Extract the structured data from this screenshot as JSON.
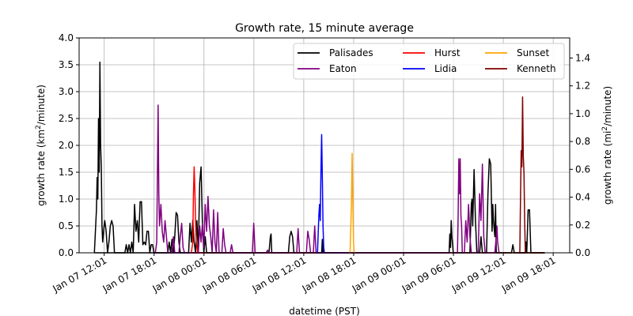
{
  "chart_data": {
    "type": "line",
    "title": "Growth rate, 15 minute average",
    "xlabel": "datetime (PST)",
    "ylabel_left": "growth rate (km2/minute)",
    "ylabel_right": "growth rate (mi2/minute)",
    "ylim_left": [
      0,
      4.0
    ],
    "ylim_right_from_left_factor": 0.386102,
    "xlim": [
      "2025-01-07 09:00",
      "2025-01-09 20:00"
    ],
    "x_ticks": [
      "2025-01-07 12:01",
      "2025-01-07 18:01",
      "2025-01-08 00:01",
      "2025-01-08 06:01",
      "2025-01-08 12:01",
      "2025-01-08 18:01",
      "2025-01-09 00:01",
      "2025-01-09 06:01",
      "2025-01-09 12:01",
      "2025-01-09 18:01"
    ],
    "x_tick_labels": [
      "Jan 07 12:01",
      "Jan 07 18:01",
      "Jan 08 00:01",
      "Jan 08 06:01",
      "Jan 08 12:01",
      "Jan 08 18:01",
      "Jan 09 00:01",
      "Jan 09 06:01",
      "Jan 09 12:01",
      "Jan 09 18:01"
    ],
    "y_ticks_left": [
      "0.0",
      "0.5",
      "1.0",
      "1.5",
      "2.0",
      "2.5",
      "3.0",
      "3.5",
      "4.0"
    ],
    "y_ticks_right": [
      "0.0",
      "0.2",
      "0.4",
      "0.6",
      "0.8",
      "1.0",
      "1.2",
      "1.4"
    ],
    "grid": true,
    "legend_position": "top-right",
    "series": [
      {
        "name": "Palisades",
        "color": "#000000",
        "points": [
          [
            "2025-01-07 10:50",
            0.0
          ],
          [
            "2025-01-07 11:05",
            0.8
          ],
          [
            "2025-01-07 11:10",
            1.4
          ],
          [
            "2025-01-07 11:15",
            1.0
          ],
          [
            "2025-01-07 11:20",
            2.5
          ],
          [
            "2025-01-07 11:25",
            1.5
          ],
          [
            "2025-01-07 11:30",
            3.55
          ],
          [
            "2025-01-07 11:35",
            2.0
          ],
          [
            "2025-01-07 11:40",
            1.6
          ],
          [
            "2025-01-07 11:45",
            0.5
          ],
          [
            "2025-01-07 11:50",
            0.2
          ],
          [
            "2025-01-07 12:00",
            0.5
          ],
          [
            "2025-01-07 12:05",
            0.6
          ],
          [
            "2025-01-07 12:15",
            0.4
          ],
          [
            "2025-01-07 12:25",
            0.0
          ],
          [
            "2025-01-07 12:35",
            0.2
          ],
          [
            "2025-01-07 12:45",
            0.5
          ],
          [
            "2025-01-07 12:55",
            0.6
          ],
          [
            "2025-01-07 13:05",
            0.5
          ],
          [
            "2025-01-07 13:15",
            0.0
          ],
          [
            "2025-01-07 14:30",
            0.0
          ],
          [
            "2025-01-07 14:40",
            0.15
          ],
          [
            "2025-01-07 14:50",
            0.0
          ],
          [
            "2025-01-07 15:00",
            0.15
          ],
          [
            "2025-01-07 15:10",
            0.0
          ],
          [
            "2025-01-07 15:20",
            0.2
          ],
          [
            "2025-01-07 15:30",
            0.0
          ],
          [
            "2025-01-07 15:40",
            0.9
          ],
          [
            "2025-01-07 15:50",
            0.4
          ],
          [
            "2025-01-07 16:00",
            0.6
          ],
          [
            "2025-01-07 16:10",
            0.2
          ],
          [
            "2025-01-07 16:15",
            0.6
          ],
          [
            "2025-01-07 16:20",
            0.95
          ],
          [
            "2025-01-07 16:30",
            0.95
          ],
          [
            "2025-01-07 16:40",
            0.15
          ],
          [
            "2025-01-07 16:50",
            0.2
          ],
          [
            "2025-01-07 17:00",
            0.15
          ],
          [
            "2025-01-07 17:10",
            0.4
          ],
          [
            "2025-01-07 17:20",
            0.4
          ],
          [
            "2025-01-07 17:30",
            0.0
          ],
          [
            "2025-01-07 17:40",
            0.15
          ],
          [
            "2025-01-07 17:50",
            0.15
          ],
          [
            "2025-01-07 18:00",
            0.0
          ],
          [
            "2025-01-07 19:40",
            0.0
          ],
          [
            "2025-01-07 19:50",
            0.2
          ],
          [
            "2025-01-07 20:00",
            0.0
          ],
          [
            "2025-01-07 20:10",
            0.25
          ],
          [
            "2025-01-07 20:20",
            0.0
          ],
          [
            "2025-01-07 20:30",
            0.3
          ],
          [
            "2025-01-07 20:40",
            0.75
          ],
          [
            "2025-01-07 20:50",
            0.7
          ],
          [
            "2025-01-07 21:00",
            0.2
          ],
          [
            "2025-01-07 21:10",
            0.0
          ],
          [
            "2025-01-07 22:10",
            0.0
          ],
          [
            "2025-01-07 22:20",
            0.55
          ],
          [
            "2025-01-07 22:30",
            0.2
          ],
          [
            "2025-01-07 22:40",
            0.6
          ],
          [
            "2025-01-07 22:50",
            0.2
          ],
          [
            "2025-01-07 23:00",
            0.0
          ],
          [
            "2025-01-07 23:10",
            0.6
          ],
          [
            "2025-01-07 23:20",
            0.0
          ],
          [
            "2025-01-07 23:30",
            1.3
          ],
          [
            "2025-01-07 23:40",
            1.6
          ],
          [
            "2025-01-07 23:50",
            0.5
          ],
          [
            "2025-01-08 00:00",
            0.0
          ],
          [
            "2025-01-08 00:10",
            0.3
          ],
          [
            "2025-01-08 00:20",
            0.0
          ],
          [
            "2025-01-08 07:50",
            0.0
          ],
          [
            "2025-01-08 08:00",
            0.3
          ],
          [
            "2025-01-08 08:05",
            0.35
          ],
          [
            "2025-01-08 08:10",
            0.0
          ],
          [
            "2025-01-08 10:10",
            0.0
          ],
          [
            "2025-01-08 10:20",
            0.3
          ],
          [
            "2025-01-08 10:30",
            0.4
          ],
          [
            "2025-01-08 10:40",
            0.3
          ],
          [
            "2025-01-08 10:50",
            0.0
          ],
          [
            "2025-01-08 14:10",
            0.0
          ],
          [
            "2025-01-08 14:15",
            0.25
          ],
          [
            "2025-01-08 14:20",
            0.0
          ],
          [
            "2025-01-09 05:30",
            0.0
          ],
          [
            "2025-01-09 05:35",
            0.35
          ],
          [
            "2025-01-09 05:40",
            0.1
          ],
          [
            "2025-01-09 05:45",
            0.6
          ],
          [
            "2025-01-09 05:50",
            0.3
          ],
          [
            "2025-01-09 06:00",
            0.0
          ],
          [
            "2025-01-09 08:00",
            0.0
          ],
          [
            "2025-01-09 08:10",
            0.9
          ],
          [
            "2025-01-09 08:15",
            1.0
          ],
          [
            "2025-01-09 08:20",
            0.5
          ],
          [
            "2025-01-09 08:30",
            1.55
          ],
          [
            "2025-01-09 08:40",
            0.6
          ],
          [
            "2025-01-09 08:50",
            0.0
          ],
          [
            "2025-01-09 09:10",
            0.0
          ],
          [
            "2025-01-09 09:20",
            0.3
          ],
          [
            "2025-01-09 09:30",
            0.0
          ],
          [
            "2025-01-09 10:00",
            0.0
          ],
          [
            "2025-01-09 10:10",
            1.1
          ],
          [
            "2025-01-09 10:20",
            1.75
          ],
          [
            "2025-01-09 10:30",
            1.65
          ],
          [
            "2025-01-09 10:40",
            0.4
          ],
          [
            "2025-01-09 10:45",
            0.9
          ],
          [
            "2025-01-09 10:50",
            0.6
          ],
          [
            "2025-01-09 11:00",
            0.3
          ],
          [
            "2025-01-09 11:05",
            0.9
          ],
          [
            "2025-01-09 11:10",
            0.0
          ],
          [
            "2025-01-09 13:00",
            0.0
          ],
          [
            "2025-01-09 13:10",
            0.15
          ],
          [
            "2025-01-09 13:20",
            0.0
          ],
          [
            "2025-01-09 14:40",
            0.0
          ],
          [
            "2025-01-09 14:45",
            0.2
          ],
          [
            "2025-01-09 14:50",
            0.0
          ],
          [
            "2025-01-09 15:00",
            0.8
          ],
          [
            "2025-01-09 15:10",
            0.8
          ],
          [
            "2025-01-09 15:20",
            0.0
          ],
          [
            "2025-01-09 17:00",
            0.0
          ]
        ]
      },
      {
        "name": "Eaton",
        "color": "#800080",
        "points": [
          [
            "2025-01-07 18:10",
            0.0
          ],
          [
            "2025-01-07 18:20",
            0.2
          ],
          [
            "2025-01-07 18:30",
            2.75
          ],
          [
            "2025-01-07 18:35",
            1.1
          ],
          [
            "2025-01-07 18:40",
            0.5
          ],
          [
            "2025-01-07 18:50",
            0.9
          ],
          [
            "2025-01-07 19:00",
            0.4
          ],
          [
            "2025-01-07 19:10",
            0.2
          ],
          [
            "2025-01-07 19:20",
            0.6
          ],
          [
            "2025-01-07 19:30",
            0.3
          ],
          [
            "2025-01-07 19:40",
            0.0
          ],
          [
            "2025-01-07 20:10",
            0.0
          ],
          [
            "2025-01-07 20:20",
            0.3
          ],
          [
            "2025-01-07 20:30",
            0.0
          ],
          [
            "2025-01-07 21:00",
            0.0
          ],
          [
            "2025-01-07 21:10",
            0.3
          ],
          [
            "2025-01-07 21:20",
            0.55
          ],
          [
            "2025-01-07 21:30",
            0.1
          ],
          [
            "2025-01-07 21:40",
            0.0
          ],
          [
            "2025-01-07 23:20",
            0.0
          ],
          [
            "2025-01-07 23:30",
            0.5
          ],
          [
            "2025-01-07 23:40",
            0.2
          ],
          [
            "2025-01-07 23:50",
            0.55
          ],
          [
            "2025-01-08 00:00",
            0.1
          ],
          [
            "2025-01-08 00:10",
            0.9
          ],
          [
            "2025-01-08 00:20",
            0.4
          ],
          [
            "2025-01-08 00:30",
            1.05
          ],
          [
            "2025-01-08 00:40",
            0.5
          ],
          [
            "2025-01-08 00:50",
            0.3
          ],
          [
            "2025-01-08 01:00",
            0.0
          ],
          [
            "2025-01-08 01:10",
            0.8
          ],
          [
            "2025-01-08 01:20",
            0.2
          ],
          [
            "2025-01-08 01:30",
            0.0
          ],
          [
            "2025-01-08 01:40",
            0.75
          ],
          [
            "2025-01-08 01:50",
            0.0
          ],
          [
            "2025-01-08 02:10",
            0.0
          ],
          [
            "2025-01-08 02:20",
            0.45
          ],
          [
            "2025-01-08 02:30",
            0.15
          ],
          [
            "2025-01-08 02:40",
            0.0
          ],
          [
            "2025-01-08 03:10",
            0.0
          ],
          [
            "2025-01-08 03:20",
            0.15
          ],
          [
            "2025-01-08 03:30",
            0.0
          ],
          [
            "2025-01-08 05:50",
            0.0
          ],
          [
            "2025-01-08 06:00",
            0.55
          ],
          [
            "2025-01-08 06:10",
            0.0
          ],
          [
            "2025-01-08 07:30",
            0.0
          ],
          [
            "2025-01-08 07:40",
            0.05
          ],
          [
            "2025-01-08 07:50",
            0.0
          ],
          [
            "2025-01-08 11:10",
            0.0
          ],
          [
            "2025-01-08 11:20",
            0.45
          ],
          [
            "2025-01-08 11:30",
            0.0
          ],
          [
            "2025-01-08 12:20",
            0.0
          ],
          [
            "2025-01-08 12:30",
            0.4
          ],
          [
            "2025-01-08 12:40",
            0.25
          ],
          [
            "2025-01-08 12:50",
            0.0
          ],
          [
            "2025-01-08 13:10",
            0.0
          ],
          [
            "2025-01-08 13:20",
            0.5
          ],
          [
            "2025-01-08 13:30",
            0.0
          ],
          [
            "2025-01-09 06:30",
            0.0
          ],
          [
            "2025-01-09 06:35",
            0.7
          ],
          [
            "2025-01-09 06:40",
            1.75
          ],
          [
            "2025-01-09 06:45",
            1.1
          ],
          [
            "2025-01-09 06:50",
            1.75
          ],
          [
            "2025-01-09 06:55",
            0.7
          ],
          [
            "2025-01-09 07:00",
            0.5
          ],
          [
            "2025-01-09 07:05",
            0.0
          ],
          [
            "2025-01-09 07:20",
            0.0
          ],
          [
            "2025-01-09 07:30",
            0.6
          ],
          [
            "2025-01-09 07:40",
            0.2
          ],
          [
            "2025-01-09 07:50",
            0.9
          ],
          [
            "2025-01-09 08:00",
            0.3
          ],
          [
            "2025-01-09 08:10",
            0.0
          ],
          [
            "2025-01-09 09:00",
            0.0
          ],
          [
            "2025-01-09 09:10",
            1.1
          ],
          [
            "2025-01-09 09:20",
            0.6
          ],
          [
            "2025-01-09 09:30",
            1.65
          ],
          [
            "2025-01-09 09:40",
            0.3
          ],
          [
            "2025-01-09 09:50",
            0.0
          ],
          [
            "2025-01-09 11:00",
            0.0
          ],
          [
            "2025-01-09 11:10",
            0.3
          ],
          [
            "2025-01-09 11:15",
            0.5
          ],
          [
            "2025-01-09 11:20",
            0.2
          ],
          [
            "2025-01-09 11:30",
            0.0
          ]
        ]
      },
      {
        "name": "Hurst",
        "color": "#ff0000",
        "points": [
          [
            "2025-01-07 22:30",
            0.0
          ],
          [
            "2025-01-07 22:40",
            0.2
          ],
          [
            "2025-01-07 22:45",
            1.1
          ],
          [
            "2025-01-07 22:50",
            1.6
          ],
          [
            "2025-01-07 22:55",
            1.2
          ],
          [
            "2025-01-07 23:00",
            0.6
          ],
          [
            "2025-01-07 23:05",
            0.2
          ],
          [
            "2025-01-07 23:15",
            0.0
          ]
        ]
      },
      {
        "name": "Lidia",
        "color": "#0000ff",
        "points": [
          [
            "2025-01-08 13:40",
            0.0
          ],
          [
            "2025-01-08 13:50",
            0.7
          ],
          [
            "2025-01-08 13:55",
            0.9
          ],
          [
            "2025-01-08 14:00",
            0.6
          ],
          [
            "2025-01-08 14:05",
            1.5
          ],
          [
            "2025-01-08 14:10",
            2.2
          ],
          [
            "2025-01-08 14:15",
            1.4
          ],
          [
            "2025-01-08 14:20",
            0.5
          ],
          [
            "2025-01-08 14:25",
            0.1
          ],
          [
            "2025-01-08 14:30",
            0.0
          ]
        ]
      },
      {
        "name": "Sunset",
        "color": "#ffa500",
        "points": [
          [
            "2025-01-08 17:35",
            0.0
          ],
          [
            "2025-01-08 17:45",
            0.9
          ],
          [
            "2025-01-08 17:50",
            1.85
          ],
          [
            "2025-01-08 17:55",
            1.0
          ],
          [
            "2025-01-08 18:00",
            0.2
          ],
          [
            "2025-01-08 18:05",
            0.0
          ]
        ]
      },
      {
        "name": "Kenneth",
        "color": "#800000",
        "points": [
          [
            "2025-01-09 14:00",
            0.0
          ],
          [
            "2025-01-09 14:05",
            1.0
          ],
          [
            "2025-01-09 14:10",
            1.9
          ],
          [
            "2025-01-09 14:15",
            1.6
          ],
          [
            "2025-01-09 14:20",
            2.9
          ],
          [
            "2025-01-09 14:25",
            1.8
          ],
          [
            "2025-01-09 14:30",
            1.5
          ],
          [
            "2025-01-09 14:35",
            0.6
          ],
          [
            "2025-01-09 14:40",
            0.0
          ]
        ]
      }
    ],
    "baseline_series": [
      {
        "color": "#000000",
        "from": "2025-01-07 10:50",
        "to": "2025-01-09 17:00"
      },
      {
        "color": "#800080",
        "from": "2025-01-07 18:00",
        "to": "2025-01-09 16:30"
      },
      {
        "color": "#ff0000",
        "from": "2025-01-07 22:30",
        "to": "2025-01-09 17:00"
      },
      {
        "color": "#0000ff",
        "from": "2025-01-08 13:40",
        "to": "2025-01-09 17:00"
      },
      {
        "color": "#ffa500",
        "from": "2025-01-08 17:30",
        "to": "2025-01-09 17:00"
      },
      {
        "color": "#800000",
        "from": "2025-01-09 13:50",
        "to": "2025-01-09 17:00"
      }
    ]
  }
}
